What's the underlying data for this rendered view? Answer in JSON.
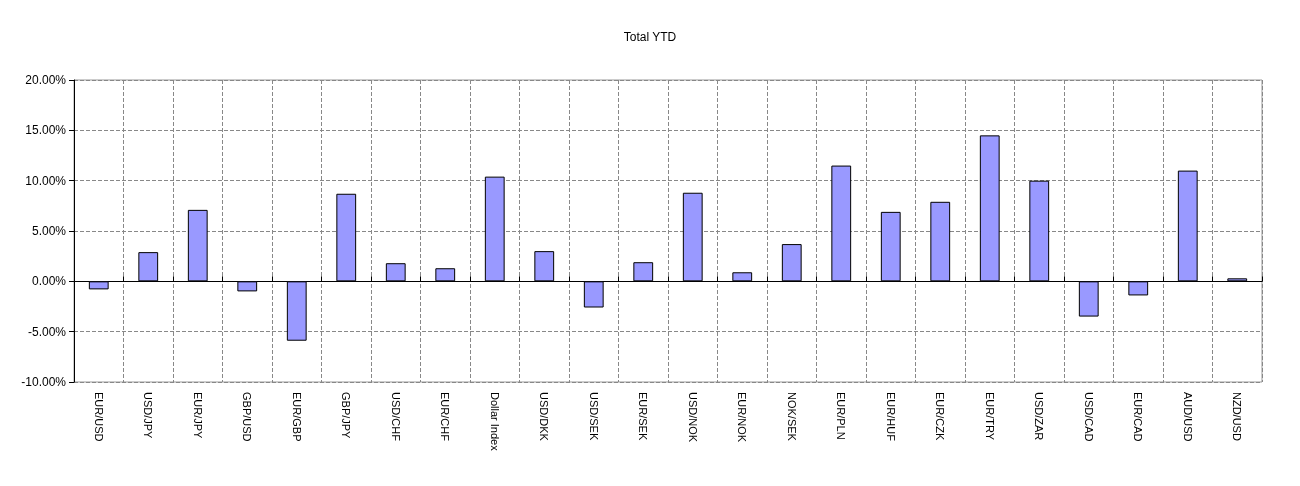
{
  "chart_data": {
    "type": "bar",
    "title": "Total YTD",
    "categories": [
      "EUR/USD",
      "USD/JPY",
      "EUR/JPY",
      "GBP/USD",
      "EUR/GBP",
      "GBP/JPY",
      "USD/CHF",
      "EUR/CHF",
      "Dollar Index",
      "USD/DKK",
      "USD/SEK",
      "EUR/SEK",
      "USD/NOK",
      "EUR/NOK",
      "NOK/SEK",
      "EUR/PLN",
      "EUR/HUF",
      "EUR/CZK",
      "EUR/TRY",
      "USD/ZAR",
      "USD/CAD",
      "EUR/CAD",
      "AUD/USD",
      "NZD/USD"
    ],
    "values": [
      -0.8,
      2.9,
      7.1,
      -1.0,
      -5.9,
      8.7,
      1.8,
      1.3,
      10.4,
      3.0,
      -2.6,
      1.9,
      8.8,
      0.9,
      3.7,
      11.5,
      6.9,
      7.9,
      14.5,
      10.0,
      -3.5,
      -1.4,
      11.0,
      0.3
    ],
    "color": "#9999ff",
    "ylim": [
      -10,
      20
    ],
    "yticks": [
      {
        "value": -10,
        "label": "-10.00%"
      },
      {
        "value": -5,
        "label": "-5.00%"
      },
      {
        "value": 0,
        "label": "0.00%"
      },
      {
        "value": 5,
        "label": "5.00%"
      },
      {
        "value": 10,
        "label": "10.00%"
      },
      {
        "value": 15,
        "label": "15.00%"
      },
      {
        "value": 20,
        "label": "20.00%"
      }
    ],
    "grid": true
  }
}
